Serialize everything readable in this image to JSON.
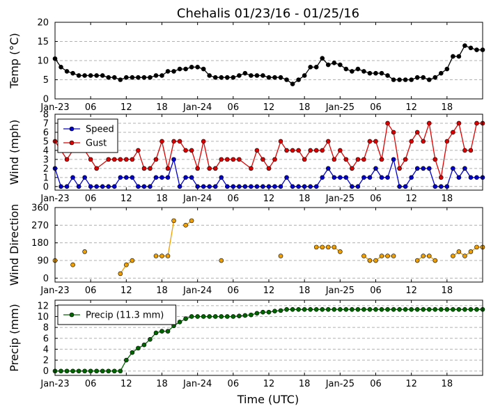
{
  "chart_data": {
    "title": "Chehalis 01/23/16 - 01/25/16",
    "xlabel": "Time (UTC)",
    "x_ticks": [
      "Jan-23",
      "06",
      "12",
      "18",
      "Jan-24",
      "06",
      "12",
      "18",
      "Jan-25",
      "06",
      "12",
      "18"
    ],
    "x_tick_hours": [
      0,
      6,
      12,
      18,
      24,
      30,
      36,
      42,
      48,
      54,
      60,
      66
    ],
    "x_range_hours": [
      0,
      72
    ],
    "panels": [
      {
        "id": "temp",
        "type": "line",
        "ylabel": "Temp (°C)",
        "ylim": [
          0,
          20
        ],
        "yticks": [
          0,
          5,
          10,
          15,
          20
        ],
        "grid": true,
        "series": [
          {
            "color": "#000000",
            "x": [
              0,
              1,
              2,
              3,
              4,
              5,
              6,
              7,
              8,
              9,
              10,
              11,
              12,
              13,
              14,
              15,
              16,
              17,
              18,
              19,
              20,
              21,
              22,
              23,
              24,
              25,
              26,
              27,
              28,
              29,
              30,
              31,
              32,
              33,
              34,
              35,
              36,
              37,
              38,
              39,
              40,
              41,
              42,
              43,
              44,
              45,
              46,
              47,
              48,
              49,
              50,
              51,
              52,
              53,
              54,
              55,
              56,
              57,
              58,
              59,
              60,
              61,
              62,
              63,
              64,
              65,
              66,
              67,
              68,
              69,
              70,
              71,
              72
            ],
            "values": [
              10.5,
              8.3,
              7.2,
              6.7,
              6.1,
              6.1,
              6.1,
              6.1,
              6.1,
              5.6,
              5.6,
              5.0,
              5.6,
              5.6,
              5.6,
              5.6,
              5.6,
              6.1,
              6.1,
              7.2,
              7.2,
              7.8,
              7.8,
              8.3,
              8.3,
              7.8,
              6.1,
              5.6,
              5.6,
              5.6,
              5.6,
              6.1,
              6.7,
              6.1,
              6.1,
              6.1,
              5.6,
              5.6,
              5.6,
              5.0,
              3.9,
              5.0,
              6.1,
              8.3,
              8.3,
              10.6,
              8.9,
              9.4,
              8.9,
              7.8,
              7.2,
              7.8,
              7.2,
              6.7,
              6.7,
              6.7,
              6.1,
              5.0,
              5.0,
              5.0,
              5.0,
              5.6,
              5.6,
              5.0,
              5.6,
              6.7,
              7.8,
              11.1,
              11.1,
              13.9,
              13.3,
              12.8,
              12.8
            ]
          }
        ]
      },
      {
        "id": "wind",
        "type": "line",
        "ylabel": "Wind (mph)",
        "ylim": [
          -0.4,
          8
        ],
        "yticks": [
          0,
          1,
          2,
          3,
          4,
          5,
          6,
          7,
          8
        ],
        "grid": true,
        "legend": "top-left",
        "series": [
          {
            "name": "Speed",
            "color": "#0000cc",
            "x": [
              0,
              1,
              2,
              3,
              4,
              5,
              6,
              7,
              8,
              9,
              10,
              11,
              12,
              13,
              14,
              15,
              16,
              17,
              18,
              19,
              20,
              21,
              22,
              23,
              24,
              25,
              26,
              27,
              28,
              29,
              30,
              31,
              32,
              33,
              34,
              35,
              36,
              37,
              38,
              39,
              40,
              41,
              42,
              43,
              44,
              45,
              46,
              47,
              48,
              49,
              50,
              51,
              52,
              53,
              54,
              55,
              56,
              57,
              58,
              59,
              60,
              61,
              62,
              63,
              64,
              65,
              66,
              67,
              68,
              69,
              70,
              71,
              72
            ],
            "values": [
              2,
              0,
              0,
              1,
              0,
              1,
              0,
              0,
              0,
              0,
              0,
              1,
              1,
              1,
              0,
              0,
              0,
              1,
              1,
              1,
              3,
              0,
              1,
              1,
              0,
              0,
              0,
              0,
              1,
              0,
              0,
              0,
              0,
              0,
              0,
              0,
              0,
              0,
              0,
              1,
              0,
              0,
              0,
              0,
              0,
              1,
              2,
              1,
              1,
              1,
              0,
              0,
              1,
              1,
              2,
              1,
              1,
              3,
              0,
              0,
              1,
              2,
              2,
              2,
              0,
              0,
              0,
              2,
              1,
              2,
              1,
              1,
              1
            ]
          },
          {
            "name": "Gust",
            "color": "#dd0000",
            "x": [
              0,
              1,
              2,
              3,
              5,
              6,
              7,
              9,
              10,
              11,
              12,
              13,
              14,
              15,
              16,
              17,
              18,
              19,
              20,
              21,
              22,
              23,
              24,
              25,
              26,
              27,
              28,
              29,
              30,
              31,
              33,
              34,
              35,
              36,
              37,
              38,
              39,
              40,
              41,
              42,
              43,
              44,
              45,
              46,
              47,
              48,
              49,
              50,
              51,
              52,
              53,
              54,
              55,
              56,
              57,
              58,
              59,
              60,
              61,
              62,
              63,
              64,
              65,
              66,
              67,
              68,
              69,
              70,
              71,
              72
            ],
            "values": [
              5,
              4,
              3,
              4,
              4,
              3,
              2,
              3,
              3,
              3,
              3,
              3,
              4,
              2,
              2,
              3,
              5,
              2,
              5,
              5,
              4,
              4,
              2,
              5,
              2,
              2,
              3,
              3,
              3,
              3,
              2,
              4,
              3,
              2,
              3,
              5,
              4,
              4,
              4,
              3,
              4,
              4,
              4,
              5,
              3,
              4,
              3,
              2,
              3,
              3,
              5,
              5,
              3,
              7,
              6,
              2,
              3,
              5,
              6,
              5,
              7,
              3,
              1,
              5,
              6,
              7,
              4,
              4,
              7,
              7
            ]
          }
        ]
      },
      {
        "id": "dir",
        "type": "line",
        "ylabel": "Wind Direction",
        "ylim": [
          -20,
          360
        ],
        "yticks": [
          0,
          90,
          180,
          270,
          360
        ],
        "grid": true,
        "series": [
          {
            "color": "#f0a000",
            "segments": [
              {
                "x": [
                  0
                ],
                "values": [
                  90
                ]
              },
              {
                "x": [
                  3
                ],
                "values": [
                  68
                ]
              },
              {
                "x": [
                  5
                ],
                "values": [
                  135
                ]
              },
              {
                "x": [
                  11,
                  12,
                  13
                ],
                "values": [
                  23,
                  68,
                  90
                ]
              },
              {
                "x": [
                  17,
                  18,
                  19,
                  20
                ],
                "values": [
                  113,
                  113,
                  113,
                  293
                ]
              },
              {
                "x": [
                  22,
                  23
                ],
                "values": [
                  270,
                  293
                ]
              },
              {
                "x": [
                  28
                ],
                "values": [
                  90
                ]
              },
              {
                "x": [
                  38
                ],
                "values": [
                  113
                ]
              },
              {
                "x": [
                  44,
                  45,
                  46,
                  47,
                  48
                ],
                "values": [
                  158,
                  158,
                  158,
                  158,
                  135
                ]
              },
              {
                "x": [
                  52,
                  53,
                  54,
                  55,
                  56,
                  57
                ],
                "values": [
                  113,
                  90,
                  90,
                  113,
                  113,
                  113
                ]
              },
              {
                "x": [
                  61,
                  62,
                  63,
                  64
                ],
                "values": [
                  90,
                  113,
                  113,
                  90
                ]
              },
              {
                "x": [
                  67,
                  68,
                  69,
                  70,
                  71,
                  72
                ],
                "values": [
                  113,
                  135,
                  113,
                  135,
                  158,
                  158
                ]
              }
            ]
          }
        ]
      },
      {
        "id": "precip",
        "type": "line",
        "ylabel": "Precip (mm)",
        "ylim": [
          -0.8,
          13
        ],
        "yticks": [
          0,
          2,
          4,
          6,
          8,
          10,
          12
        ],
        "grid": true,
        "legend": "top-left",
        "series": [
          {
            "name": "Precip (11.3 mm)",
            "color": "#006600",
            "x": [
              0,
              1,
              2,
              3,
              4,
              5,
              6,
              7,
              8,
              9,
              10,
              11,
              12,
              13,
              14,
              15,
              16,
              17,
              18,
              19,
              20,
              21,
              22,
              23,
              24,
              25,
              26,
              27,
              28,
              29,
              30,
              31,
              32,
              33,
              34,
              35,
              36,
              37,
              38,
              39,
              40,
              41,
              42,
              43,
              44,
              45,
              46,
              47,
              48,
              49,
              50,
              51,
              52,
              53,
              54,
              55,
              56,
              57,
              58,
              59,
              60,
              61,
              62,
              63,
              64,
              65,
              66,
              67,
              68,
              69,
              70,
              71,
              72
            ],
            "values": [
              0,
              0,
              0,
              0,
              0,
              0,
              0,
              0,
              0,
              0,
              0,
              0,
              2.0,
              3.4,
              4.2,
              4.8,
              5.8,
              7.0,
              7.3,
              7.3,
              8.3,
              9.0,
              9.6,
              10.0,
              10.0,
              10.0,
              10.0,
              10.0,
              10.0,
              10.0,
              10.0,
              10.1,
              10.2,
              10.3,
              10.6,
              10.8,
              10.8,
              11.0,
              11.1,
              11.3,
              11.3,
              11.3,
              11.3,
              11.3,
              11.3,
              11.3,
              11.3,
              11.3,
              11.3,
              11.3,
              11.3,
              11.3,
              11.3,
              11.3,
              11.3,
              11.3,
              11.3,
              11.3,
              11.3,
              11.3,
              11.3,
              11.3,
              11.3,
              11.3,
              11.3,
              11.3,
              11.3,
              11.3,
              11.3,
              11.3,
              11.3,
              11.3,
              11.3
            ]
          }
        ]
      }
    ]
  }
}
